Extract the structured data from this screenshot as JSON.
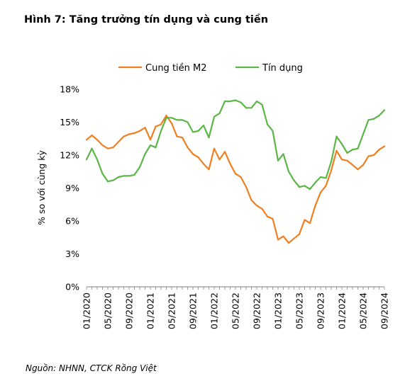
{
  "title": "Hình 7: Tăng trưởng tín dụng và cung tiền",
  "source": "Nguồn: NHNN, CTCK Rồng Việt",
  "chart_data": {
    "type": "line",
    "ylabel": "% so với cùng kỳ",
    "ylim": [
      0,
      18
    ],
    "yticks": [
      0,
      3,
      6,
      9,
      12,
      15,
      18
    ],
    "ytick_labels": [
      "0%",
      "3%",
      "6%",
      "9%",
      "12%",
      "15%",
      "18%"
    ],
    "x_tick_labels": [
      "01/2020",
      "05/2020",
      "09/2020",
      "01/2021",
      "05/2021",
      "09/2021",
      "01/2022",
      "05/2022",
      "09/2022",
      "01/2023",
      "05/2023",
      "09/2023",
      "01/2024",
      "05/2024",
      "09/2024"
    ],
    "x_tick_every": 4,
    "grid": false,
    "legend_position": "top-center",
    "series": [
      {
        "name": "Cung tiền M2",
        "color": "#f07f21",
        "values": [
          13.4,
          13.8,
          13.4,
          12.9,
          12.6,
          12.7,
          13.2,
          13.7,
          13.9,
          14.0,
          14.2,
          14.5,
          13.4,
          14.6,
          14.8,
          15.6,
          14.9,
          13.7,
          13.6,
          12.7,
          12.1,
          11.8,
          11.2,
          10.7,
          12.6,
          11.6,
          12.3,
          11.2,
          10.3,
          10.0,
          9.1,
          7.9,
          7.4,
          7.1,
          6.4,
          6.2,
          4.3,
          4.6,
          4.0,
          4.4,
          4.8,
          6.1,
          5.8,
          7.4,
          8.6,
          9.2,
          10.6,
          12.4,
          11.6,
          11.5,
          11.1,
          10.7,
          11.1,
          11.9,
          12.0,
          12.5,
          12.8
        ]
      },
      {
        "name": "Tín dụng",
        "color": "#5cb646",
        "values": [
          11.6,
          12.6,
          11.6,
          10.3,
          9.6,
          9.7,
          10.0,
          10.1,
          10.1,
          10.2,
          10.9,
          12.1,
          12.9,
          12.7,
          14.2,
          15.4,
          15.4,
          15.2,
          15.2,
          15.0,
          14.1,
          14.2,
          14.7,
          13.6,
          15.5,
          15.8,
          16.9,
          16.9,
          17.0,
          16.8,
          16.3,
          16.3,
          16.9,
          16.6,
          14.8,
          14.2,
          11.5,
          12.1,
          10.5,
          9.7,
          9.1,
          9.2,
          8.9,
          9.5,
          10.0,
          9.9,
          11.4,
          13.7,
          13.0,
          12.2,
          12.5,
          12.6,
          13.9,
          15.2,
          15.3,
          15.6,
          16.1
        ]
      }
    ]
  }
}
